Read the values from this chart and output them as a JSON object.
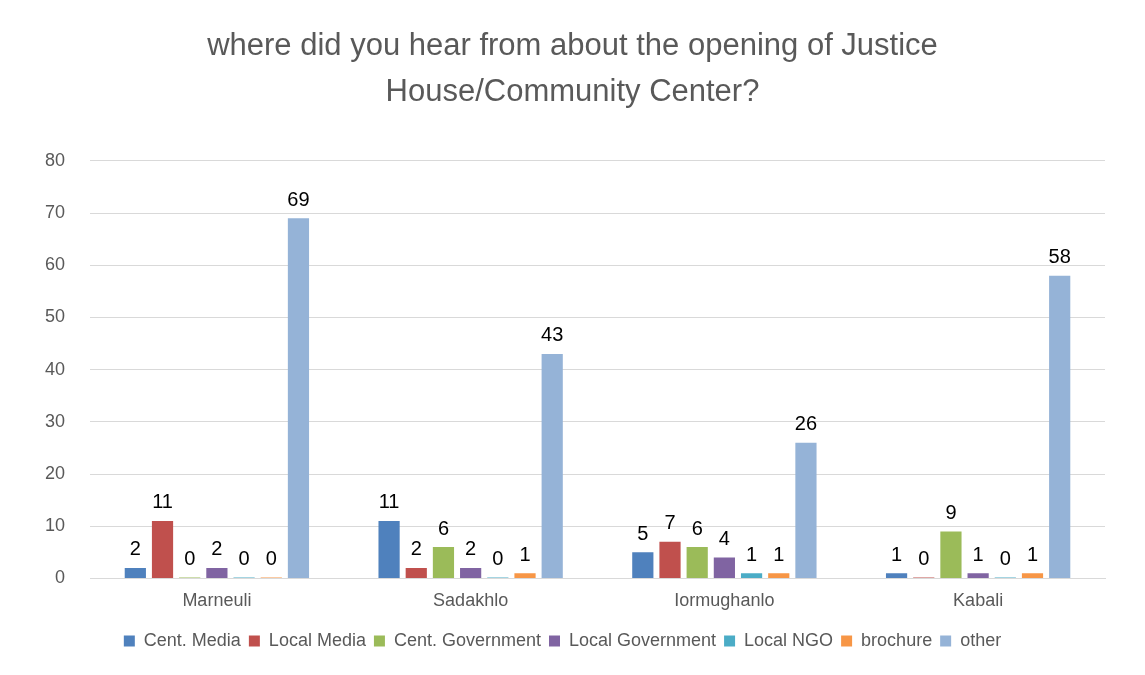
{
  "chart_data": {
    "type": "bar",
    "title": "where did you hear from about the opening of Justice House/Community Center?",
    "categories": [
      "Marneuli",
      "Sadakhlo",
      "Iormughanlo",
      "Kabali"
    ],
    "series": [
      {
        "name": "Cent. Media",
        "color": "#4f81bd",
        "values": [
          2,
          11,
          5,
          1
        ]
      },
      {
        "name": "Local Media",
        "color": "#c0504d",
        "values": [
          11,
          2,
          7,
          0
        ]
      },
      {
        "name": "Cent. Government",
        "color": "#9bbb59",
        "values": [
          0,
          6,
          6,
          9
        ]
      },
      {
        "name": "Local Government",
        "color": "#8064a2",
        "values": [
          2,
          2,
          4,
          1
        ]
      },
      {
        "name": "Local NGO",
        "color": "#4bacc6",
        "values": [
          0,
          0,
          1,
          0
        ]
      },
      {
        "name": "brochure",
        "color": "#f79646",
        "values": [
          0,
          1,
          1,
          1
        ]
      },
      {
        "name": "other",
        "color": "#95b3d7",
        "values": [
          69,
          43,
          26,
          58
        ]
      }
    ],
    "ylim": [
      0,
      80
    ],
    "yticks": [
      0,
      10,
      20,
      30,
      40,
      50,
      60,
      70,
      80
    ],
    "grid": "y",
    "legend": "bottom",
    "data_labels": true
  }
}
